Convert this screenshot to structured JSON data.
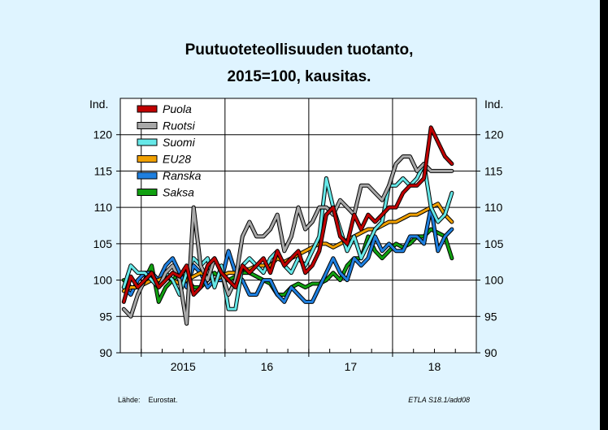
{
  "chart_data": {
    "type": "line",
    "title": "Puutuoteteollisuuden tuotanto,",
    "subtitle": "2015=100, kausitas.",
    "ylabel_left": "Ind.",
    "ylabel_right": "Ind.",
    "ylim": [
      90,
      125
    ],
    "yticks": [
      90,
      95,
      100,
      105,
      110,
      115,
      120
    ],
    "x_start": "2014-10",
    "x_end": "2018-12",
    "year_labels": [
      {
        "label": "2015",
        "year": 2015
      },
      {
        "label": "16",
        "year": 2016
      },
      {
        "label": "17",
        "year": 2017
      },
      {
        "label": "18",
        "year": 2018
      }
    ],
    "grid": true,
    "legend_position": "top-left",
    "source": "Lähde:    Eurostat.",
    "code": "ETLA S18.1/add08",
    "series": [
      {
        "name": "Puola",
        "color": "#c00000",
        "start": "2014-10",
        "values": [
          97,
          100.5,
          99,
          100,
          101,
          99,
          100,
          101,
          100.5,
          102,
          98,
          99,
          102,
          103,
          101,
          100,
          99,
          102,
          101,
          102,
          103,
          101,
          104,
          102,
          103,
          104,
          101,
          102,
          104,
          109,
          110,
          106,
          105,
          109,
          107,
          109,
          108,
          109,
          110,
          110,
          112,
          113,
          113,
          114,
          121,
          119,
          117,
          116
        ]
      },
      {
        "name": "Ruotsi",
        "color": "#a8a8a8",
        "start": "2014-10",
        "values": [
          96,
          95,
          98,
          100,
          101,
          99,
          101,
          102,
          100,
          94,
          110,
          102,
          100,
          103,
          101,
          98,
          100,
          106,
          108,
          106,
          106,
          107,
          109,
          104,
          106,
          110,
          107,
          108,
          110,
          110,
          109,
          111,
          110,
          109,
          113,
          113,
          112,
          111,
          113,
          116,
          117,
          117,
          115,
          116,
          115,
          115,
          115,
          115
        ]
      },
      {
        "name": "Suomi",
        "color": "#66e8e8",
        "start": "2014-10",
        "values": [
          99,
          102,
          101,
          101,
          100,
          99,
          101,
          100,
          98,
          101,
          103,
          102,
          103,
          99,
          102,
          96,
          96,
          102,
          103,
          102,
          101,
          103,
          104,
          102,
          101,
          103,
          102,
          104,
          106,
          114,
          110,
          107,
          104,
          106,
          103,
          105,
          107,
          108,
          113,
          113,
          114,
          113,
          114,
          116,
          110,
          108,
          109,
          112
        ]
      },
      {
        "name": "EU28",
        "color": "#f0a000",
        "start": "2014-10",
        "values": [
          98.5,
          99,
          99,
          99.5,
          100,
          100,
          100.5,
          100,
          99.5,
          100,
          100.5,
          101,
          100.5,
          100,
          100.5,
          101,
          101,
          101.5,
          101.5,
          102,
          102,
          102,
          103,
          102.5,
          103,
          103.5,
          104,
          104.5,
          105,
          105,
          104.5,
          105,
          105.5,
          106,
          106.5,
          107,
          107,
          107.5,
          108,
          108,
          108.5,
          109,
          109,
          109.5,
          110,
          110.5,
          109,
          108
        ]
      },
      {
        "name": "Ranska",
        "color": "#1e7fdf",
        "start": "2014-10",
        "values": [
          99,
          98,
          100,
          101,
          101,
          100,
          102,
          103,
          101,
          99,
          102,
          101,
          99,
          100,
          100,
          104,
          101,
          100,
          98,
          98,
          100,
          100,
          98,
          97,
          99,
          98,
          97,
          97,
          99,
          101,
          103,
          101,
          100,
          103,
          102,
          103,
          106,
          104,
          105,
          104,
          104,
          106,
          106,
          105,
          110,
          104,
          106,
          107
        ]
      },
      {
        "name": "Saksa",
        "color": "#10a010",
        "start": "2014-10",
        "values": [
          100,
          99,
          99,
          100,
          102,
          97,
          99,
          100,
          101,
          100,
          99,
          99,
          100,
          101,
          100,
          100,
          100.5,
          101,
          101,
          100.5,
          100,
          99.5,
          98,
          98,
          99,
          99.5,
          99,
          99.5,
          99.5,
          100,
          101,
          100,
          102,
          103,
          103,
          106,
          104,
          103,
          104,
          105,
          104.5,
          105,
          106,
          106,
          107,
          106.5,
          106,
          103
        ]
      }
    ]
  }
}
